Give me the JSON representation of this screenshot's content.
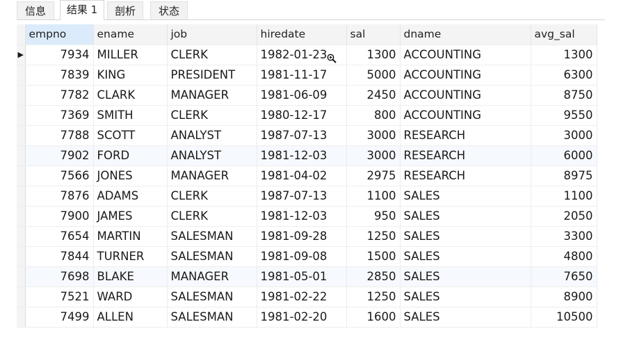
{
  "tabs": [
    "信息",
    "结果 1",
    "剖析",
    "状态"
  ],
  "active_tab": 1,
  "columns": [
    "empno",
    "ename",
    "job",
    "hiredate",
    "sal",
    "dname",
    "avg_sal"
  ],
  "current_row_marker": "▶",
  "rows": [
    [
      "7934",
      "MILLER",
      "CLERK",
      "1982-01-23",
      "1300",
      "ACCOUNTING",
      "1300"
    ],
    [
      "7839",
      "KING",
      "PRESIDENT",
      "1981-11-17",
      "5000",
      "ACCOUNTING",
      "6300"
    ],
    [
      "7782",
      "CLARK",
      "MANAGER",
      "1981-06-09",
      "2450",
      "ACCOUNTING",
      "8750"
    ],
    [
      "7369",
      "SMITH",
      "CLERK",
      "1980-12-17",
      "800",
      "ACCOUNTING",
      "9550"
    ],
    [
      "7788",
      "SCOTT",
      "ANALYST",
      "1987-07-13",
      "3000",
      "RESEARCH",
      "3000"
    ],
    [
      "7902",
      "FORD",
      "ANALYST",
      "1981-12-03",
      "3000",
      "RESEARCH",
      "6000"
    ],
    [
      "7566",
      "JONES",
      "MANAGER",
      "1981-04-02",
      "2975",
      "RESEARCH",
      "8975"
    ],
    [
      "7876",
      "ADAMS",
      "CLERK",
      "1987-07-13",
      "1100",
      "SALES",
      "1100"
    ],
    [
      "7900",
      "JAMES",
      "CLERK",
      "1981-12-03",
      "950",
      "SALES",
      "2050"
    ],
    [
      "7654",
      "MARTIN",
      "SALESMAN",
      "1981-09-28",
      "1250",
      "SALES",
      "3300"
    ],
    [
      "7844",
      "TURNER",
      "SALESMAN",
      "1981-09-08",
      "1500",
      "SALES",
      "4800"
    ],
    [
      "7698",
      "BLAKE",
      "MANAGER",
      "1981-05-01",
      "2850",
      "SALES",
      "7650"
    ],
    [
      "7521",
      "WARD",
      "SALESMAN",
      "1981-02-22",
      "1250",
      "SALES",
      "8900"
    ],
    [
      "7499",
      "ALLEN",
      "SALESMAN",
      "1981-02-20",
      "1600",
      "SALES",
      "10500"
    ]
  ]
}
